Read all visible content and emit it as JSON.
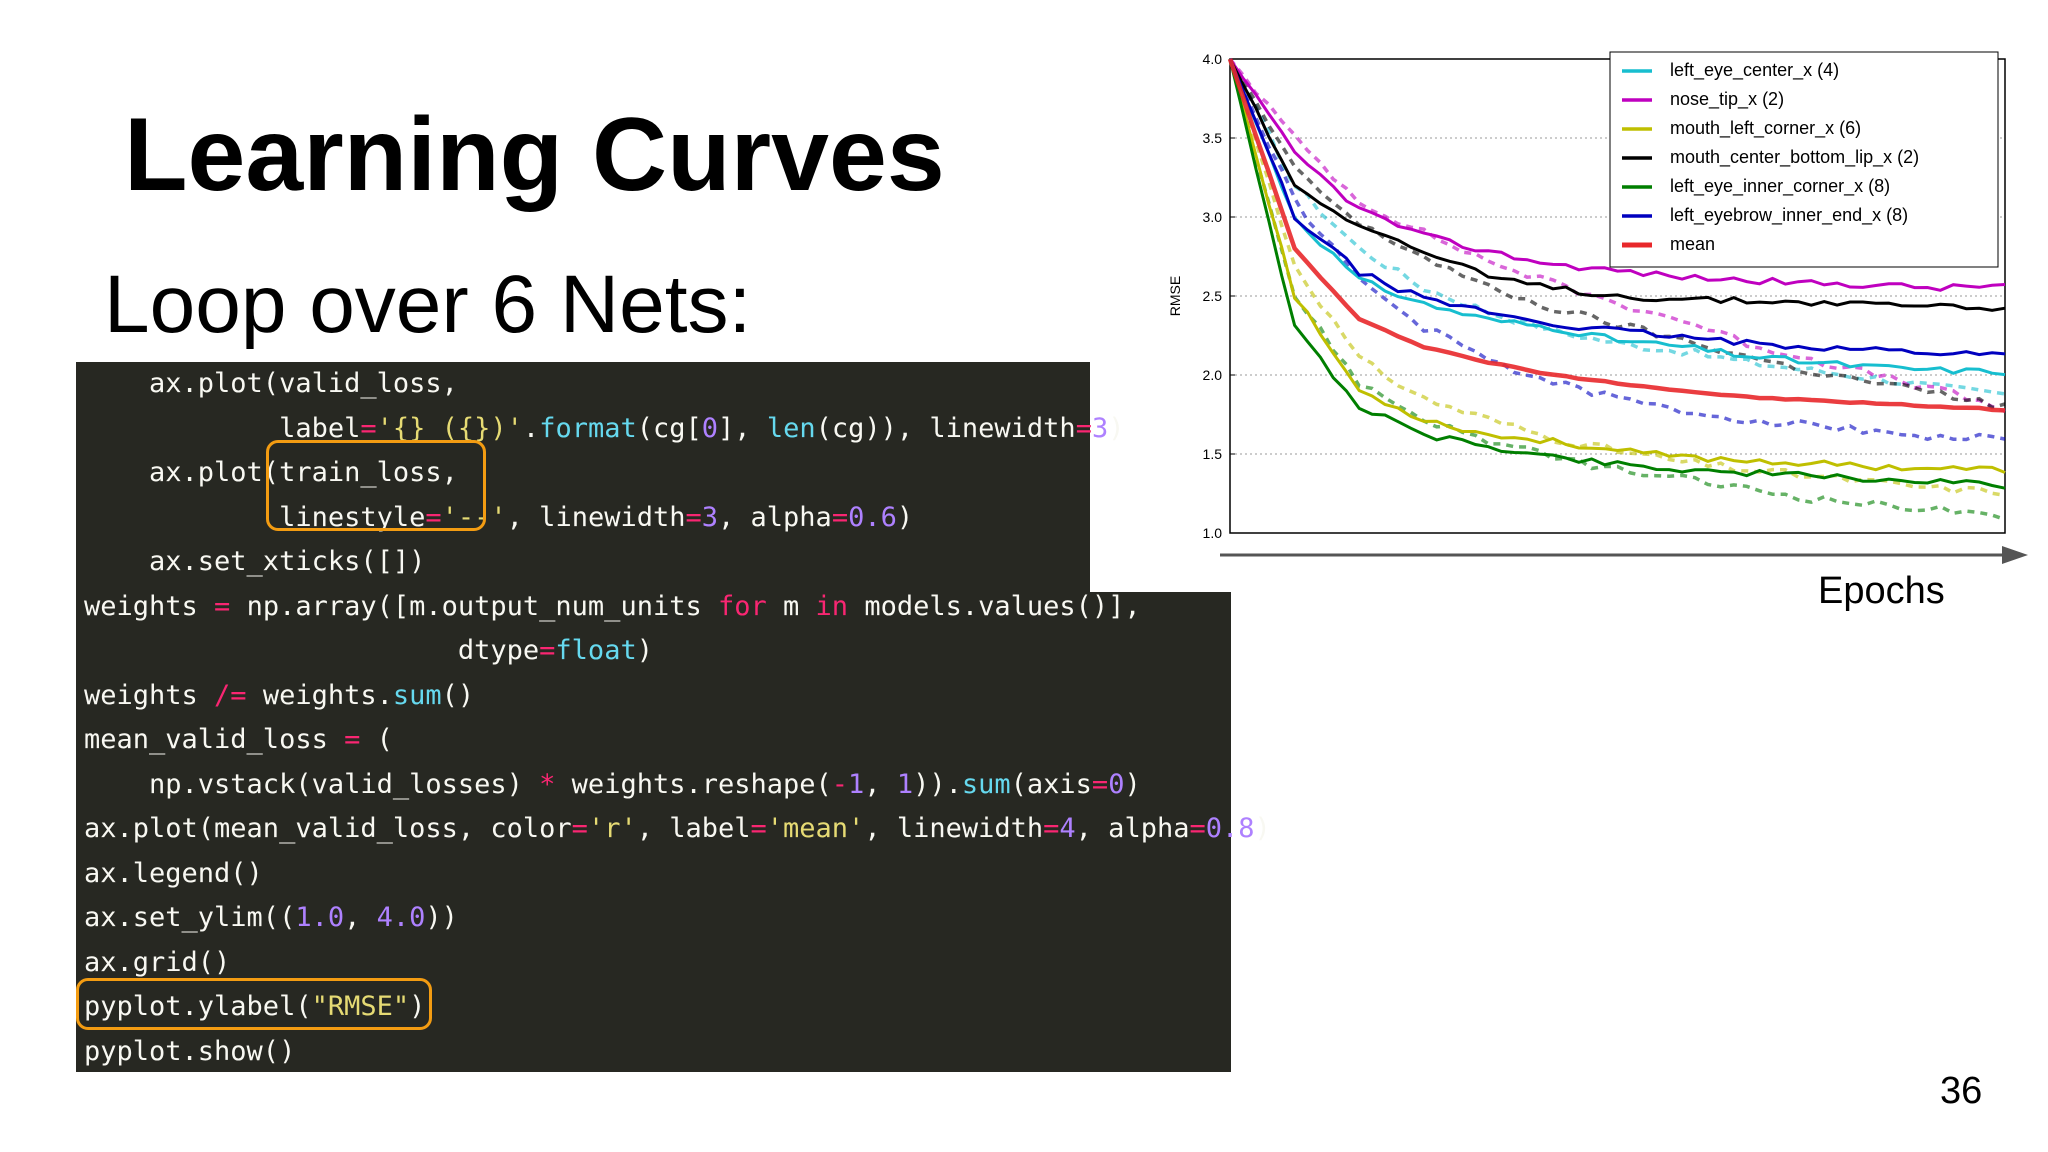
{
  "slide": {
    "title": "Learning Curves",
    "subtitle": "Loop over 6 Nets:",
    "page_number": "36",
    "epochs_label": "Epochs"
  },
  "code_lines": [
    [
      [
        "plain",
        "    ax.plot(valid_loss,"
      ]
    ],
    [
      [
        "plain",
        "            label"
      ],
      [
        "op",
        "="
      ],
      [
        "str",
        "'{} ({})'"
      ],
      [
        "plain",
        "."
      ],
      [
        "fn",
        "format"
      ],
      [
        "plain",
        "(cg["
      ],
      [
        "num",
        "0"
      ],
      [
        "plain",
        "], "
      ],
      [
        "fn",
        "len"
      ],
      [
        "plain",
        "(cg)), linewidth"
      ],
      [
        "op",
        "="
      ],
      [
        "num",
        "3"
      ],
      [
        "plain",
        ")"
      ]
    ],
    [
      [
        "plain",
        "    ax.plot(train_loss,"
      ]
    ],
    [
      [
        "plain",
        "            linestyle"
      ],
      [
        "op",
        "="
      ],
      [
        "str",
        "'--'"
      ],
      [
        "plain",
        ", linewidth"
      ],
      [
        "op",
        "="
      ],
      [
        "num",
        "3"
      ],
      [
        "plain",
        ", alpha"
      ],
      [
        "op",
        "="
      ],
      [
        "num",
        "0.6"
      ],
      [
        "plain",
        ")"
      ]
    ],
    [
      [
        "plain",
        "    ax.set_xticks([])"
      ]
    ],
    [
      [
        "plain",
        "weights "
      ],
      [
        "op",
        "="
      ],
      [
        "plain",
        " np.array([m.output_num_units "
      ],
      [
        "op",
        "for"
      ],
      [
        "plain",
        " m "
      ],
      [
        "op",
        "in"
      ],
      [
        "plain",
        " models.values()],"
      ]
    ],
    [
      [
        "plain",
        "                       dtype"
      ],
      [
        "op",
        "="
      ],
      [
        "fn",
        "float"
      ],
      [
        "plain",
        ")"
      ]
    ],
    [
      [
        "plain",
        "weights "
      ],
      [
        "op",
        "/="
      ],
      [
        "plain",
        " weights."
      ],
      [
        "fn",
        "sum"
      ],
      [
        "plain",
        "()"
      ]
    ],
    [
      [
        "plain",
        "mean_valid_loss "
      ],
      [
        "op",
        "="
      ],
      [
        "plain",
        " ("
      ]
    ],
    [
      [
        "plain",
        "    np.vstack(valid_losses) "
      ],
      [
        "op",
        "*"
      ],
      [
        "plain",
        " weights.reshape("
      ],
      [
        "op",
        "-"
      ],
      [
        "num",
        "1"
      ],
      [
        "plain",
        ", "
      ],
      [
        "num",
        "1"
      ],
      [
        "plain",
        "))."
      ],
      [
        "fn",
        "sum"
      ],
      [
        "plain",
        "(axis"
      ],
      [
        "op",
        "="
      ],
      [
        "num",
        "0"
      ],
      [
        "plain",
        ")"
      ]
    ],
    [
      [
        "plain",
        "ax.plot(mean_valid_loss, color"
      ],
      [
        "op",
        "="
      ],
      [
        "str",
        "'r'"
      ],
      [
        "plain",
        ", label"
      ],
      [
        "op",
        "="
      ],
      [
        "str",
        "'mean'"
      ],
      [
        "plain",
        ", linewidth"
      ],
      [
        "op",
        "="
      ],
      [
        "num",
        "4"
      ],
      [
        "plain",
        ", alpha"
      ],
      [
        "op",
        "="
      ],
      [
        "num",
        "0.8"
      ],
      [
        "plain",
        ")"
      ]
    ],
    [
      [
        "plain",
        "ax.legend()"
      ]
    ],
    [
      [
        "plain",
        "ax.set_ylim(("
      ],
      [
        "num",
        "1.0"
      ],
      [
        "plain",
        ", "
      ],
      [
        "num",
        "4.0"
      ],
      [
        "plain",
        "))"
      ]
    ],
    [
      [
        "plain",
        "ax.grid()"
      ]
    ],
    [
      [
        "plain",
        "pyplot.ylabel("
      ],
      [
        "str",
        "\"RMSE\""
      ],
      [
        "plain",
        ")"
      ]
    ],
    [
      [
        "plain",
        "pyplot.show()"
      ]
    ]
  ],
  "chart_data": {
    "type": "line",
    "ylabel": "RMSE",
    "ylim": [
      1.0,
      4.0
    ],
    "yticks": [
      "1.0",
      "1.5",
      "2.0",
      "2.5",
      "3.0",
      "3.5",
      "4.0"
    ],
    "grid": true,
    "legend_position": "top-right",
    "epochs": 60,
    "series": [
      {
        "name": "left_eye_center_x (4)",
        "color": "#17becf",
        "valid": [
          4.0,
          3.0,
          2.6,
          2.45,
          2.35,
          2.3,
          2.22,
          2.18,
          2.12,
          2.08,
          2.05,
          2.03,
          2.02
        ],
        "train": [
          4.0,
          3.2,
          2.8,
          2.55,
          2.4,
          2.28,
          2.2,
          2.15,
          2.08,
          2.03,
          1.98,
          1.92,
          1.88
        ]
      },
      {
        "name": "nose_tip_x (2)",
        "color": "#bf00bf",
        "valid": [
          4.0,
          3.4,
          3.05,
          2.88,
          2.78,
          2.7,
          2.66,
          2.62,
          2.6,
          2.58,
          2.57,
          2.55,
          2.57
        ],
        "train": [
          4.0,
          3.5,
          3.1,
          2.9,
          2.72,
          2.58,
          2.45,
          2.35,
          2.2,
          2.1,
          2.0,
          1.9,
          1.78
        ]
      },
      {
        "name": "mouth_left_corner_x (6)",
        "color": "#bfbf00",
        "valid": [
          4.0,
          2.5,
          1.9,
          1.72,
          1.62,
          1.58,
          1.52,
          1.48,
          1.46,
          1.44,
          1.42,
          1.41,
          1.4
        ],
        "train": [
          4.0,
          2.7,
          2.1,
          1.85,
          1.72,
          1.6,
          1.52,
          1.45,
          1.4,
          1.36,
          1.32,
          1.28,
          1.26
        ]
      },
      {
        "name": "mouth_center_bottom_lip_x (2)",
        "color": "#000000",
        "valid": [
          4.0,
          3.2,
          2.95,
          2.78,
          2.62,
          2.55,
          2.5,
          2.48,
          2.47,
          2.46,
          2.45,
          2.44,
          2.42
        ],
        "train": [
          4.0,
          3.3,
          2.95,
          2.75,
          2.55,
          2.42,
          2.32,
          2.22,
          2.12,
          2.02,
          1.95,
          1.88,
          1.8
        ]
      },
      {
        "name": "left_eye_inner_corner_x (8)",
        "color": "#007f00",
        "valid": [
          4.0,
          2.3,
          1.8,
          1.62,
          1.55,
          1.48,
          1.44,
          1.4,
          1.38,
          1.36,
          1.34,
          1.32,
          1.3
        ],
        "train": [
          4.0,
          2.5,
          1.95,
          1.72,
          1.58,
          1.48,
          1.4,
          1.34,
          1.28,
          1.22,
          1.18,
          1.15,
          1.08
        ]
      },
      {
        "name": "left_eyebrow_inner_end_x (8)",
        "color": "#0000bf",
        "valid": [
          4.0,
          3.0,
          2.65,
          2.48,
          2.4,
          2.32,
          2.28,
          2.24,
          2.2,
          2.18,
          2.16,
          2.14,
          2.13
        ],
        "train": [
          4.0,
          3.1,
          2.6,
          2.3,
          2.1,
          1.95,
          1.85,
          1.77,
          1.72,
          1.68,
          1.65,
          1.6,
          1.6
        ]
      },
      {
        "name": "mean",
        "color": "#e8282b",
        "valid": [
          4.0,
          2.8,
          2.35,
          2.18,
          2.08,
          2.0,
          1.95,
          1.9,
          1.86,
          1.84,
          1.82,
          1.8,
          1.78
        ],
        "train": null
      }
    ]
  }
}
